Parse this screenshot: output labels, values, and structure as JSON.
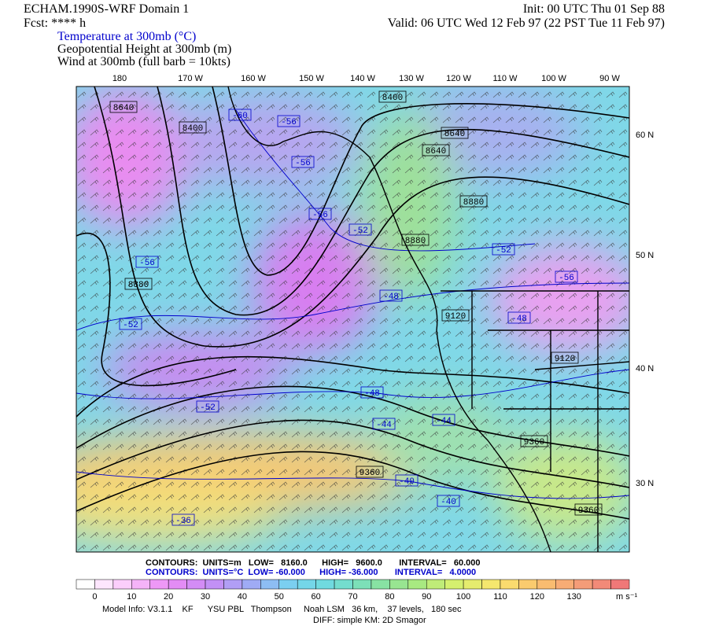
{
  "header": {
    "left": [
      "ECHAM.1990S-WRF Domain 1",
      "Fcst: **** h"
    ],
    "right": [
      "Init: 00 UTC Thu 01 Sep 88",
      "Valid: 06 UTC Wed 12 Feb 97 (22 PST Tue 11 Feb 97)"
    ],
    "fields": [
      "Temperature at 300mb (°C)",
      "Geopotential Height at 300mb (m)",
      "Wind at 300mb (full barb = 10kts)"
    ]
  },
  "map": {
    "lon_labels": [
      "180",
      "170 W",
      "160 W",
      "150 W",
      "140 W",
      "130 W",
      "120 W",
      "110 W",
      "100 W",
      "90 W"
    ],
    "lat_labels": [
      "60 N",
      "50 N",
      "40 N",
      "30 N"
    ],
    "height_labels": [
      "8640",
      "8400",
      "8400",
      "8640",
      "8640",
      "8880",
      "8880",
      "8880",
      "9120",
      "9120",
      "9360",
      "9360",
      "9360"
    ],
    "temperature_labels": [
      "-60",
      "-56",
      "-56",
      "-56",
      "-52",
      "-52",
      "-56",
      "-56",
      "-48",
      "-48",
      "-52",
      "-48",
      "-44",
      "-44",
      "-52",
      "-40",
      "-40",
      "-36"
    ]
  },
  "footer": {
    "contours": [
      "CONTOURS:  UNITS=m   LOW=   8160.0      HIGH=   9600.0       INTERVAL=   60.000",
      "CONTOURS:  UNITS=°C  LOW= -60.000      HIGH= -36.000       INTERVAL=   4.0000"
    ],
    "colorbar_labels": [
      "0",
      "10",
      "20",
      "30",
      "40",
      "50",
      "60",
      "70",
      "80",
      "90",
      "100",
      "110",
      "120",
      "130"
    ],
    "colorbar_unit": "m s⁻¹",
    "model_info": [
      "Model Info: V3.1.1    KF      YSU PBL   Thompson     Noah LSM   36 km,    37 levels,   180 sec",
      "DIFF: simple KM: 2D Smagor"
    ]
  }
}
